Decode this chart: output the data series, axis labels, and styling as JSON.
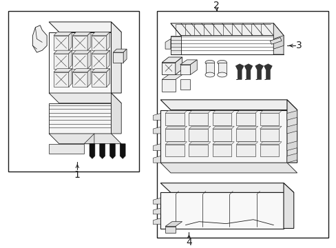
{
  "bg_color": "#ffffff",
  "line_color": "#1a1a1a",
  "label_color": "#1a1a1a",
  "fig_width": 4.89,
  "fig_height": 3.6,
  "dpi": 100,
  "lw": 0.65
}
